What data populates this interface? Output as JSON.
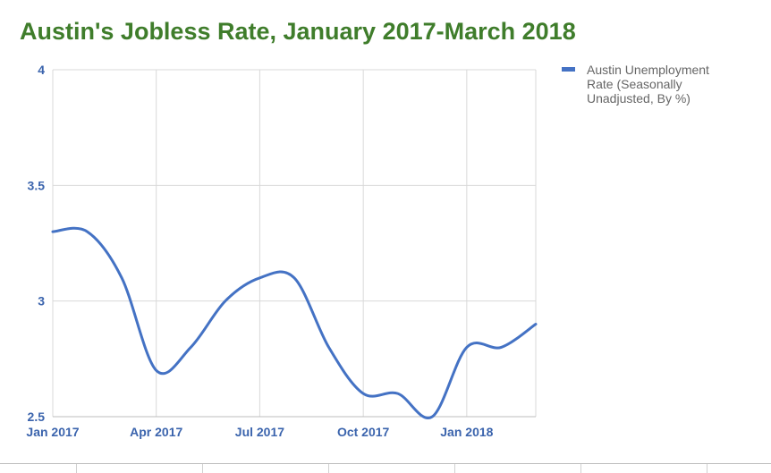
{
  "chart_data": {
    "type": "line",
    "title": "Austin's Jobless Rate, January 2017-March 2018",
    "xlabel": "",
    "ylabel": "",
    "x": [
      "2017-01",
      "2017-02",
      "2017-03",
      "2017-04",
      "2017-05",
      "2017-06",
      "2017-07",
      "2017-08",
      "2017-09",
      "2017-10",
      "2017-11",
      "2017-12",
      "2018-01",
      "2018-02",
      "2018-03"
    ],
    "series": [
      {
        "name": "Austin Unemployment Rate (Seasonally Unadjusted, By %)",
        "values": [
          3.3,
          3.3,
          3.1,
          2.7,
          2.8,
          3.0,
          3.1,
          3.1,
          2.8,
          2.6,
          2.6,
          2.5,
          2.8,
          2.8,
          2.9
        ]
      }
    ],
    "x_ticks": [
      "Jan 2017",
      "Apr 2017",
      "Jul 2017",
      "Oct 2017",
      "Jan 2018"
    ],
    "y_ticks": [
      "4",
      "3.5",
      "3",
      "2.5"
    ],
    "ylim": [
      2.5,
      4
    ],
    "grid": true,
    "legend": "right",
    "colors": {
      "series": "#4472c4",
      "title": "#3f7d2b",
      "tick": "#3b64ad",
      "grid": "#d9d9d9",
      "legend_text": "#666666"
    }
  }
}
